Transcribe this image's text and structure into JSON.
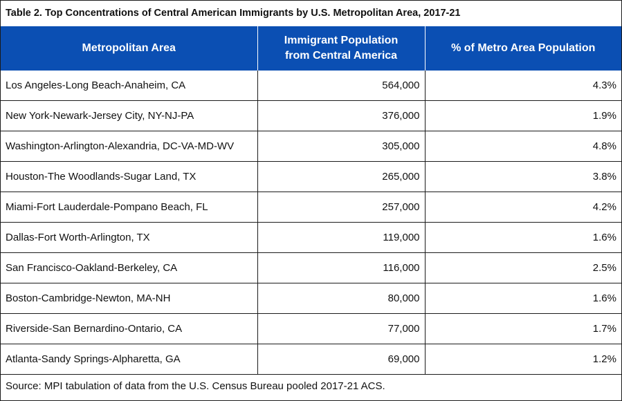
{
  "table": {
    "title": "Table 2. Top Concentrations of Central American Immigrants by U.S. Metropolitan Area, 2017-21",
    "headers": {
      "metro": "Metropolitan Area",
      "population_line1": "Immigrant Population",
      "population_line2": "from Central America",
      "percent": "% of Metro Area Population"
    },
    "rows": [
      {
        "metro": "Los Angeles-Long Beach-Anaheim, CA",
        "population": "564,000",
        "percent": "4.3%"
      },
      {
        "metro": "New York-Newark-Jersey City, NY-NJ-PA",
        "population": "376,000",
        "percent": "1.9%"
      },
      {
        "metro": "Washington-Arlington-Alexandria, DC-VA-MD-WV",
        "population": "305,000",
        "percent": "4.8%"
      },
      {
        "metro": "Houston-The Woodlands-Sugar Land, TX",
        "population": "265,000",
        "percent": "3.8%"
      },
      {
        "metro": "Miami-Fort Lauderdale-Pompano Beach, FL",
        "population": "257,000",
        "percent": "4.2%"
      },
      {
        "metro": "Dallas-Fort Worth-Arlington, TX",
        "population": "119,000",
        "percent": "1.6%"
      },
      {
        "metro": "San Francisco-Oakland-Berkeley, CA",
        "population": "116,000",
        "percent": "2.5%"
      },
      {
        "metro": "Boston-Cambridge-Newton, MA-NH",
        "population": "80,000",
        "percent": "1.6%"
      },
      {
        "metro": "Riverside-San Bernardino-Ontario, CA",
        "population": "77,000",
        "percent": "1.7%"
      },
      {
        "metro": "Atlanta-Sandy Springs-Alpharetta, GA",
        "population": "69,000",
        "percent": "1.2%"
      }
    ],
    "source": "Source: MPI tabulation of data from the U.S. Census Bureau pooled 2017-21 ACS."
  },
  "colors": {
    "header_background": "#0b4fb3",
    "header_text": "#ffffff",
    "border": "#1a1a1a"
  }
}
